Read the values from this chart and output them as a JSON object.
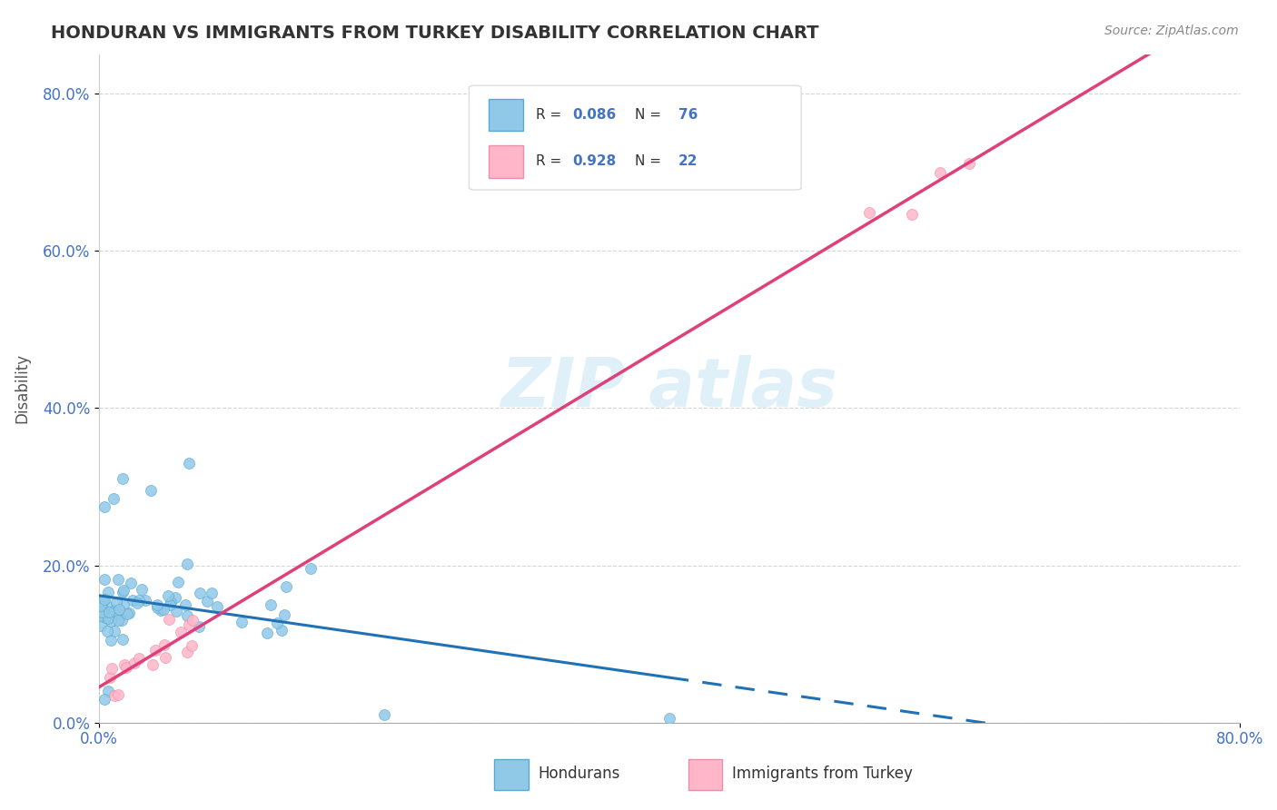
{
  "title": "HONDURAN VS IMMIGRANTS FROM TURKEY DISABILITY CORRELATION CHART",
  "source": "Source: ZipAtlas.com",
  "ylabel": "Disability",
  "hondurans_R": 0.086,
  "hondurans_N": 76,
  "turkey_R": 0.928,
  "turkey_N": 22,
  "legend_hondurans": "Hondurans",
  "legend_turkey": "Immigrants from Turkey",
  "blue_dark": "#2171b5",
  "pink_dark": "#e0407a",
  "blue_scatter": "#90c8e8",
  "pink_scatter": "#ffb6c8",
  "axis_color": "#4472C4",
  "xmin": 0.0,
  "xmax": 0.8,
  "ymin": 0.0,
  "ymax": 0.85
}
